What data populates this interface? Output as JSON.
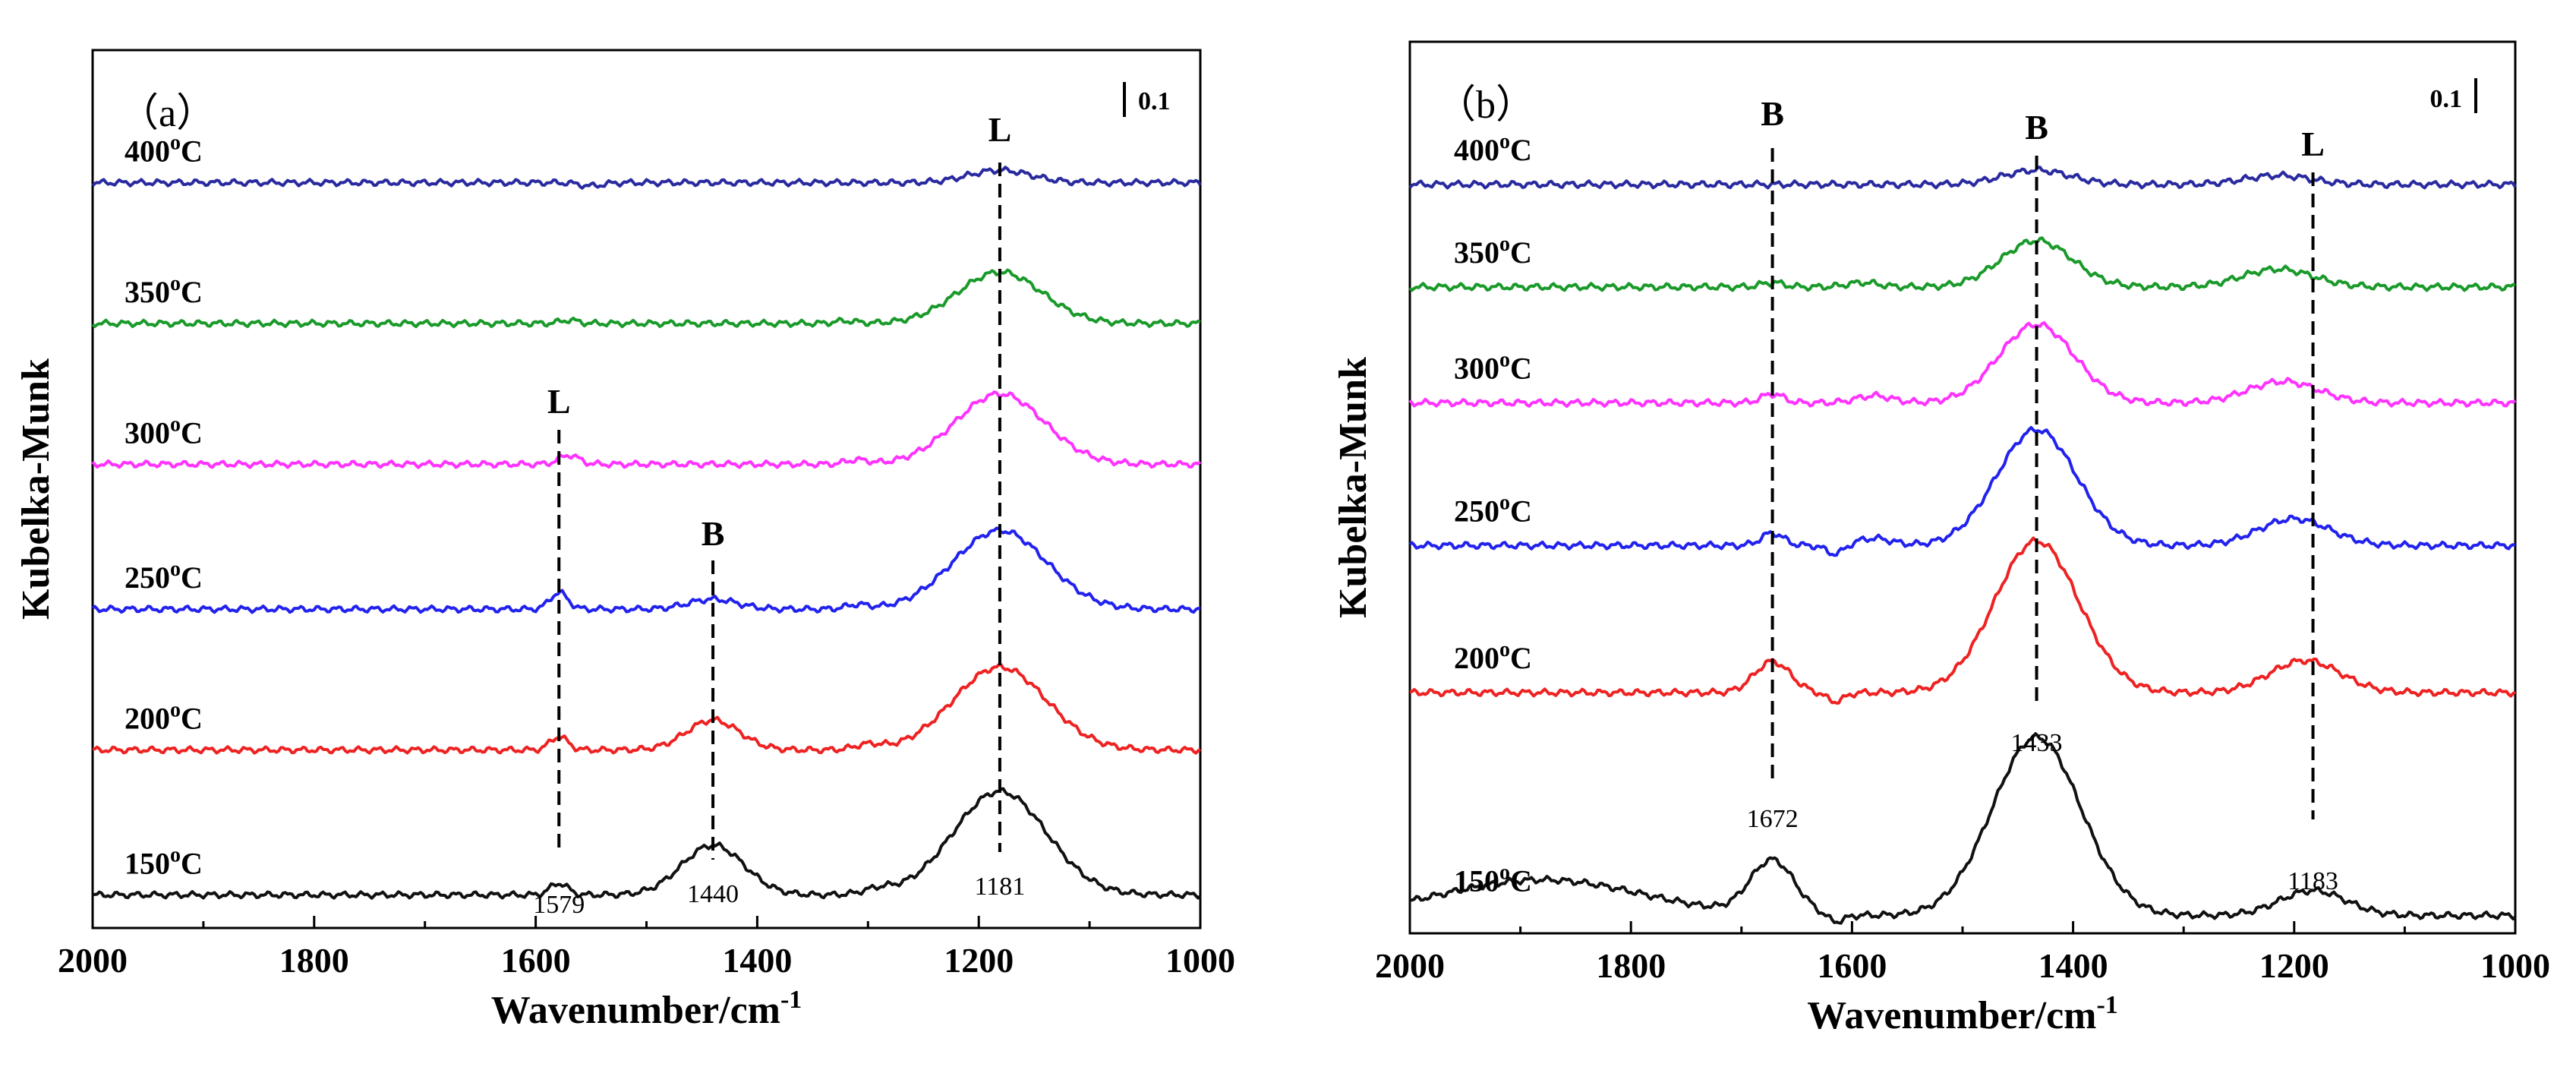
{
  "chart_data": [
    {
      "type": "line",
      "panel": "(a)",
      "panel_label": "（a）",
      "xlabel": "Wavenumber/cm",
      "xlabel_sup": "-1",
      "ylabel": "Kubelka-Munk",
      "xlim": [
        2000,
        1000
      ],
      "ylim": [
        -0.58,
        0.48
      ],
      "xticks": [
        "2000",
        "1800",
        "1600",
        "1400",
        "1200",
        "1000"
      ],
      "scale_bar": "0.1",
      "series": [
        {
          "name": "400",
          "unit": "C",
          "color": "#2a2aa0",
          "baseline": 0.32,
          "peaks": [
            [
              1181,
              0.015,
              28
            ],
            [
              1550,
              -0.004,
              10
            ]
          ]
        },
        {
          "name": "350",
          "unit": "C",
          "color": "#1a9a2a",
          "baseline": 0.15,
          "peaks": [
            [
              1181,
              0.062,
              38
            ],
            [
              1570,
              0.004,
              8
            ],
            [
              1320,
              0.003,
              10
            ]
          ]
        },
        {
          "name": "300",
          "unit": "C",
          "color": "#ff33ff",
          "baseline": -0.02,
          "peaks": [
            [
              1181,
              0.085,
              40
            ],
            [
              1570,
              0.011,
              9
            ],
            [
              1310,
              0.005,
              10
            ]
          ]
        },
        {
          "name": "250",
          "unit": "C",
          "color": "#2222ee",
          "baseline": -0.195,
          "peaks": [
            [
              1181,
              0.095,
              42
            ],
            [
              1579,
              0.02,
              8
            ],
            [
              1440,
              0.012,
              22
            ],
            [
              1310,
              0.005,
              10
            ]
          ]
        },
        {
          "name": "200",
          "unit": "C",
          "color": "#ee2222",
          "baseline": -0.365,
          "peaks": [
            [
              1181,
              0.1,
              42
            ],
            [
              1579,
              0.016,
              8
            ],
            [
              1440,
              0.036,
              24
            ],
            [
              1300,
              0.006,
              12
            ]
          ]
        },
        {
          "name": "150",
          "unit": "C",
          "color": "#111111",
          "baseline": -0.54,
          "peaks": [
            [
              1181,
              0.125,
              42
            ],
            [
              1579,
              0.014,
              8
            ],
            [
              1440,
              0.06,
              28
            ],
            [
              1290,
              0.006,
              14
            ]
          ]
        }
      ],
      "annotations": [
        {
          "letter": "L",
          "x": 1181,
          "value": "1181"
        },
        {
          "letter": "L",
          "x": 1579,
          "value": "1579"
        },
        {
          "letter": "B",
          "x": 1440,
          "value": "1440"
        }
      ]
    },
    {
      "type": "line",
      "panel": "(b)",
      "panel_label": "（b）",
      "xlabel": "Wavenumber/cm",
      "xlabel_sup": "-1",
      "ylabel": "Kubelka-Munk",
      "xlim": [
        2000,
        1000
      ],
      "ylim": [
        -0.52,
        0.48
      ],
      "xticks": [
        "2000",
        "1800",
        "1600",
        "1400",
        "1200",
        "1000"
      ],
      "scale_bar": "0.1",
      "series": [
        {
          "name": "400",
          "unit": "C",
          "color": "#2a2aa0",
          "baseline": 0.32,
          "peaks": [
            [
              1433,
              0.016,
              30
            ],
            [
              1215,
              0.01,
              30
            ]
          ]
        },
        {
          "name": "350",
          "unit": "C",
          "color": "#1a9a2a",
          "baseline": 0.205,
          "peaks": [
            [
              1433,
              0.052,
              32
            ],
            [
              1215,
              0.02,
              32
            ],
            [
              1672,
              0.005,
              10
            ],
            [
              1590,
              0.005,
              14
            ]
          ]
        },
        {
          "name": "300",
          "unit": "C",
          "color": "#ff33ff",
          "baseline": 0.075,
          "peaks": [
            [
              1433,
              0.088,
              34
            ],
            [
              1210,
              0.024,
              32
            ],
            [
              1672,
              0.01,
              10
            ],
            [
              1580,
              0.008,
              16
            ]
          ]
        },
        {
          "name": "250",
          "unit": "C",
          "color": "#2222ee",
          "baseline": -0.085,
          "peaks": [
            [
              1433,
              0.13,
              36
            ],
            [
              1200,
              0.03,
              32
            ],
            [
              1672,
              0.014,
              10
            ],
            [
              1580,
              0.008,
              16
            ],
            [
              1615,
              -0.01,
              8
            ]
          ]
        },
        {
          "name": "200",
          "unit": "C",
          "color": "#ee2222",
          "baseline": -0.25,
          "peaks": [
            [
              1433,
              0.17,
              38
            ],
            [
              1190,
              0.036,
              32
            ],
            [
              1672,
              0.035,
              16
            ],
            [
              1615,
              -0.01,
              8
            ]
          ]
        },
        {
          "name": "150",
          "unit": "C",
          "color": "#111111",
          "baseline": -0.5,
          "peaks": [
            [
              1433,
              0.2,
              40
            ],
            [
              1183,
              0.028,
              30
            ],
            [
              1672,
              0.06,
              20
            ],
            [
              1880,
              0.04,
              90
            ],
            [
              1615,
              -0.008,
              8
            ]
          ]
        }
      ],
      "annotations": [
        {
          "letter": "B",
          "x": 1672,
          "value": "1672"
        },
        {
          "letter": "B",
          "x": 1433,
          "value": "1433"
        },
        {
          "letter": "L",
          "x": 1183,
          "value": "1183"
        }
      ]
    }
  ]
}
